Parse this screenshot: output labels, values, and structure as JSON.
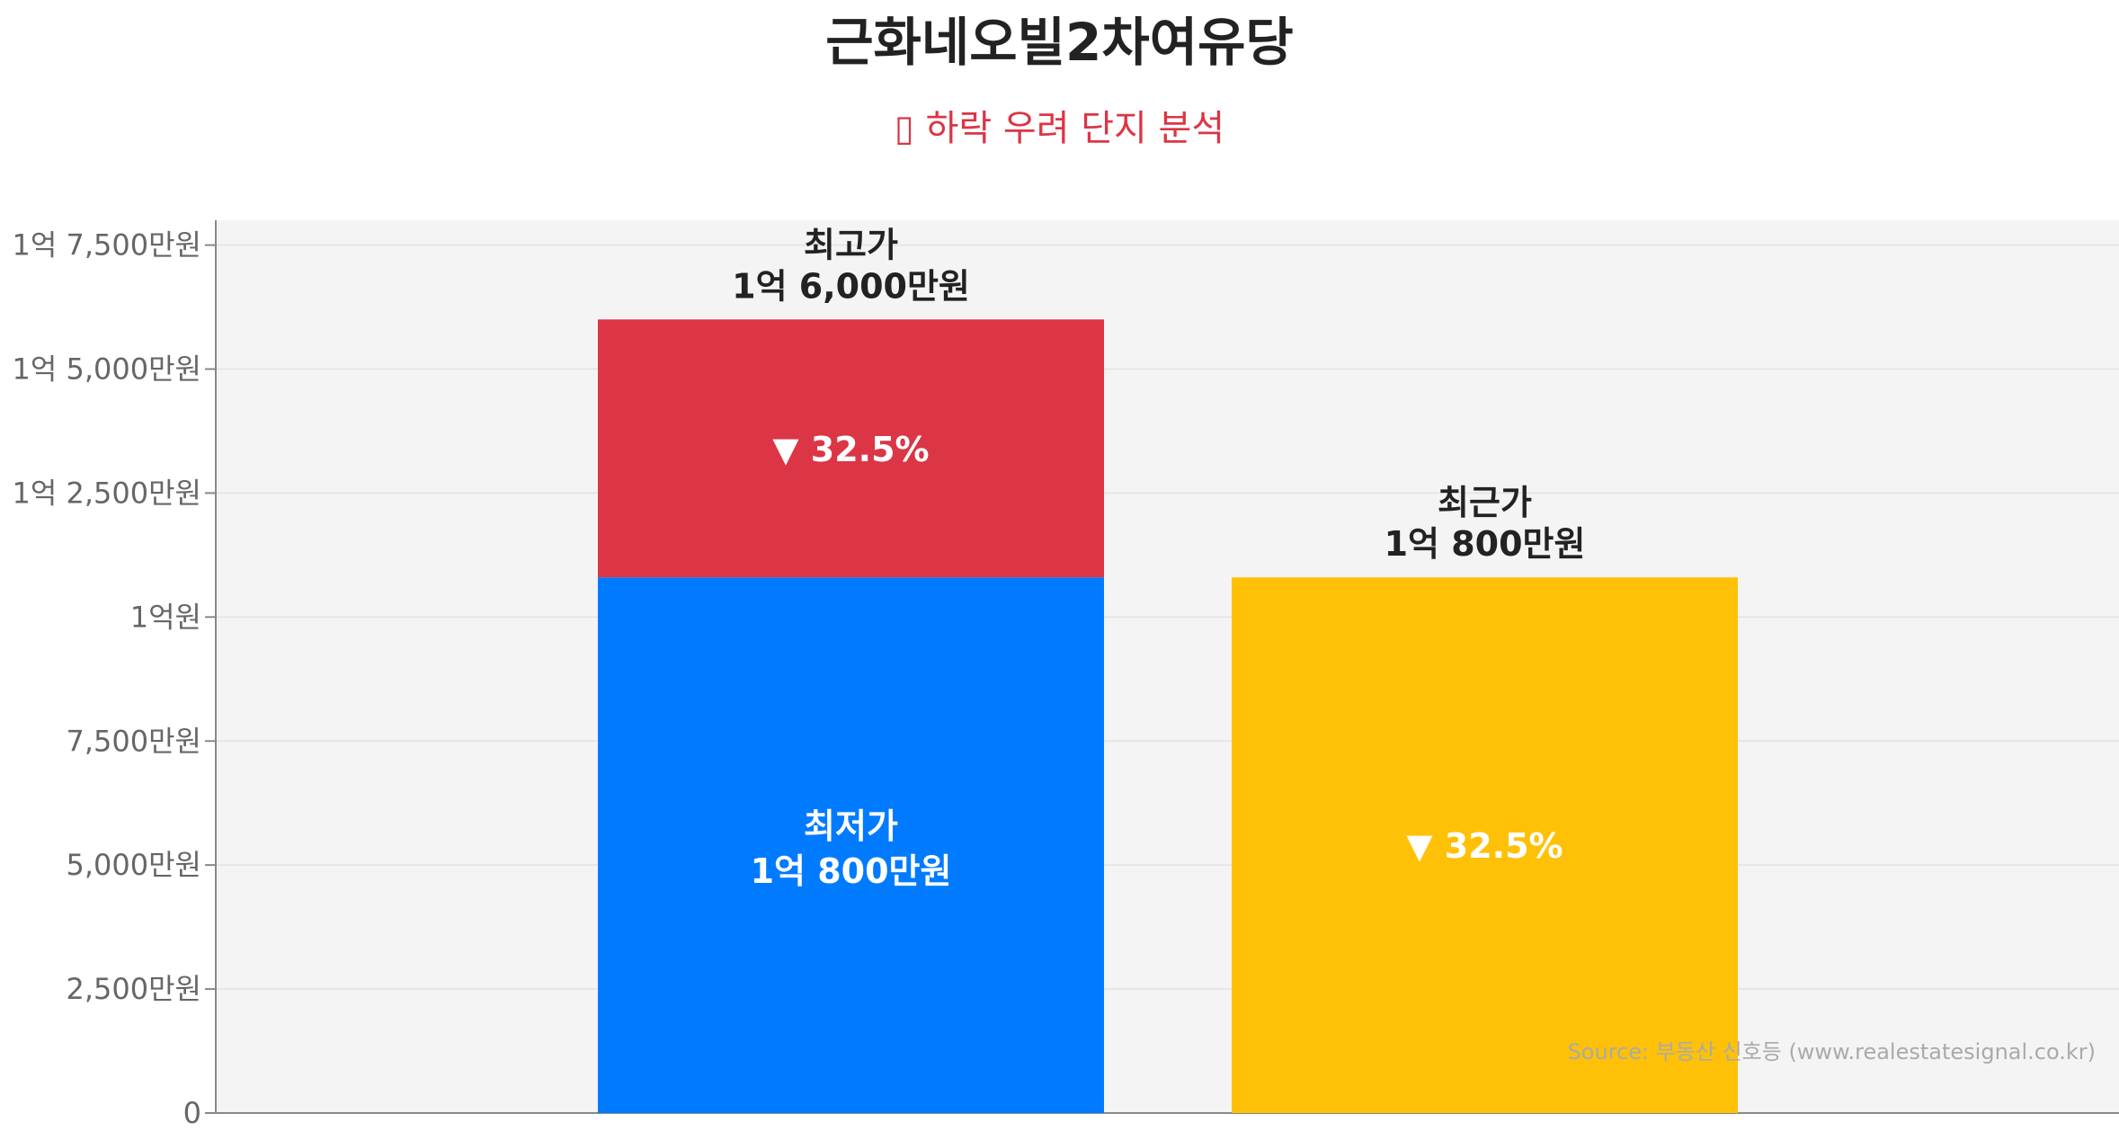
{
  "title": "근화네오빌2차여유당",
  "subtitle": "▯ 하락 우려 단지 분석",
  "source": "Source: 부동산 신호등 (www.realestatesignal.co.kr)",
  "colors": {
    "high": "#dc3545",
    "low": "#007bff",
    "recent": "#ffc107",
    "plot_bg": "#f4f4f4",
    "axis_text": "#666666",
    "label_dark": "#222222",
    "label_light": "#ffffff"
  },
  "chart_data": {
    "type": "bar",
    "unit": "만원",
    "ylim": [
      0,
      18000
    ],
    "yticks": [
      0,
      2500,
      5000,
      7500,
      10000,
      12500,
      15000,
      17500
    ],
    "ytick_labels": [
      "0",
      "2,500만원",
      "5,000만원",
      "7,500만원",
      "1억원",
      "1억 2,500만원",
      "1억 5,000만원",
      "1억 7,500만원"
    ],
    "grid": true,
    "bars": [
      {
        "stacked": [
          {
            "name": "최저가",
            "value": 10800,
            "label_line1": "최저가",
            "label_line2": "1억 800만원",
            "color_key": "low"
          },
          {
            "name": "최고가",
            "value": 5200,
            "label": "▼ 32.5%",
            "color_key": "high"
          }
        ],
        "top_label_line1": "최고가",
        "top_label_line2": "1억 6,000만원",
        "total": 16000
      },
      {
        "stacked": [
          {
            "name": "최근가",
            "value": 10800,
            "label": "▼ 32.5%",
            "color_key": "recent"
          }
        ],
        "top_label_line1": "최근가",
        "top_label_line2": "1억 800만원",
        "total": 10800
      }
    ]
  }
}
